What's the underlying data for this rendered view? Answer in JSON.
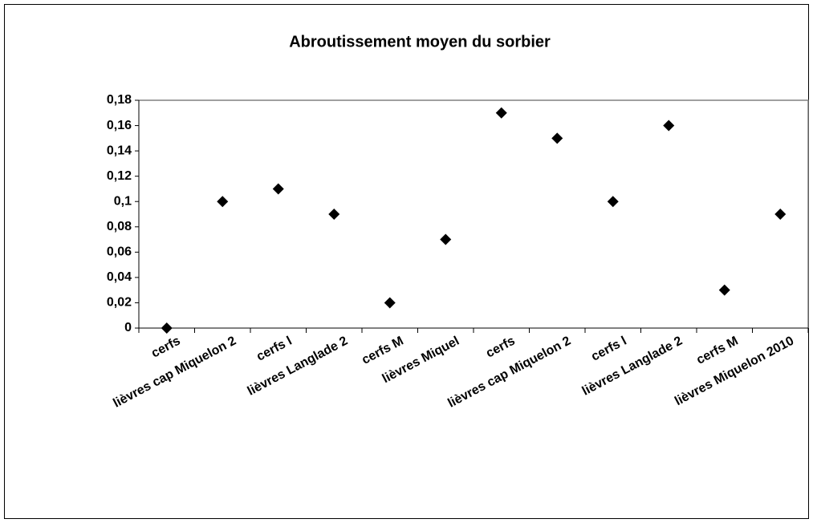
{
  "chart_data": {
    "type": "scatter",
    "title": "Abroutissement moyen du sorbier",
    "categories": [
      "cerfs",
      "lièvres cap Miquelon 2",
      "cerfs l",
      "lièvres Langlade 2",
      "cerfs M",
      "lièvres Miquel",
      "cerfs",
      "lièvres cap Miquelon 2",
      "cerfs l",
      "lièvres Langlade 2",
      "cerfs M",
      "lièvres Miquelon 2010"
    ],
    "values": [
      0,
      0.1,
      0.11,
      0.09,
      0.02,
      0.07,
      0.17,
      0.15,
      0.1,
      0.16,
      0.03,
      0.09
    ],
    "color": "#000000",
    "ylim": [
      0,
      0.18
    ],
    "yticks": [
      0,
      {
        "value": 0.02,
        "label": "0,02"
      },
      {
        "value": 0.04,
        "label": "0,04"
      },
      {
        "value": 0.06,
        "label": "0,06"
      },
      {
        "value": 0.08,
        "label": "0,08"
      },
      {
        "value": 0.1,
        "label": "0,1"
      },
      {
        "value": 0.12,
        "label": "0,12"
      },
      {
        "value": 0.14,
        "label": "0,14"
      },
      {
        "value": 0.16,
        "label": "0,16"
      },
      {
        "value": 0.18,
        "label": "0,18"
      }
    ],
    "grid": false
  }
}
